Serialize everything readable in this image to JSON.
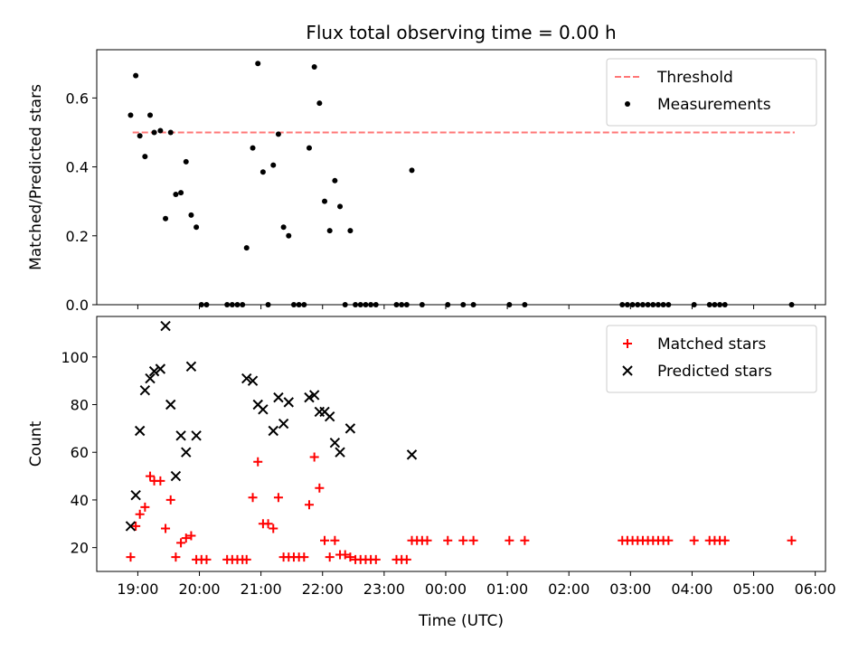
{
  "chart_data": [
    {
      "type": "scatter",
      "title": "Flux total observing time = 0.00 h",
      "xlabel": "",
      "ylabel": "Matched/Predicted stars",
      "xlim": [
        "18:20",
        "06:10"
      ],
      "ylim": [
        0,
        0.74
      ],
      "yticks": [
        "0.0",
        "0.2",
        "0.4",
        "0.6"
      ],
      "legend_position": "top-right",
      "threshold": {
        "name": "Threshold",
        "value": 0.5,
        "x_range": [
          "18:55",
          "05:40"
        ],
        "style": "dashed",
        "color": "#ff7777"
      },
      "series": [
        {
          "name": "Measurements",
          "marker": "dot",
          "color": "#000000",
          "points": [
            [
              "18:53",
              0.55
            ],
            [
              "18:58",
              0.665
            ],
            [
              "19:02",
              0.49
            ],
            [
              "19:07",
              0.43
            ],
            [
              "19:12",
              0.55
            ],
            [
              "19:16",
              0.5
            ],
            [
              "19:22",
              0.505
            ],
            [
              "19:27",
              0.25
            ],
            [
              "19:32",
              0.5
            ],
            [
              "19:37",
              0.32
            ],
            [
              "19:42",
              0.325
            ],
            [
              "19:47",
              0.415
            ],
            [
              "19:52",
              0.26
            ],
            [
              "19:57",
              0.225
            ],
            [
              "20:02",
              0.0
            ],
            [
              "20:07",
              0.0
            ],
            [
              "20:27",
              0.0
            ],
            [
              "20:32",
              0.0
            ],
            [
              "20:37",
              0.0
            ],
            [
              "20:42",
              0.0
            ],
            [
              "20:46",
              0.165
            ],
            [
              "20:52",
              0.455
            ],
            [
              "20:57",
              0.7
            ],
            [
              "21:02",
              0.385
            ],
            [
              "21:07",
              0.0
            ],
            [
              "21:12",
              0.405
            ],
            [
              "21:17",
              0.495
            ],
            [
              "21:22",
              0.225
            ],
            [
              "21:27",
              0.2
            ],
            [
              "21:32",
              0.0
            ],
            [
              "21:37",
              0.0
            ],
            [
              "21:42",
              0.0
            ],
            [
              "21:47",
              0.455
            ],
            [
              "21:52",
              0.69
            ],
            [
              "21:57",
              0.585
            ],
            [
              "22:02",
              0.3
            ],
            [
              "22:07",
              0.215
            ],
            [
              "22:12",
              0.36
            ],
            [
              "22:17",
              0.285
            ],
            [
              "22:22",
              0.0
            ],
            [
              "22:27",
              0.215
            ],
            [
              "22:32",
              0.0
            ],
            [
              "22:37",
              0.0
            ],
            [
              "22:42",
              0.0
            ],
            [
              "22:47",
              0.0
            ],
            [
              "22:52",
              0.0
            ],
            [
              "23:12",
              0.0
            ],
            [
              "23:17",
              0.0
            ],
            [
              "23:22",
              0.0
            ],
            [
              "23:27",
              0.39
            ],
            [
              "23:37",
              0.0
            ],
            [
              "00:02",
              0.0
            ],
            [
              "00:17",
              0.0
            ],
            [
              "00:27",
              0.0
            ],
            [
              "01:02",
              0.0
            ],
            [
              "01:17",
              0.0
            ],
            [
              "02:52",
              0.0
            ],
            [
              "02:57",
              0.0
            ],
            [
              "03:02",
              0.0
            ],
            [
              "03:07",
              0.0
            ],
            [
              "03:12",
              0.0
            ],
            [
              "03:17",
              0.0
            ],
            [
              "03:22",
              0.0
            ],
            [
              "03:27",
              0.0
            ],
            [
              "03:32",
              0.0
            ],
            [
              "03:37",
              0.0
            ],
            [
              "04:02",
              0.0
            ],
            [
              "04:17",
              0.0
            ],
            [
              "04:22",
              0.0
            ],
            [
              "04:27",
              0.0
            ],
            [
              "04:32",
              0.0
            ],
            [
              "05:37",
              0.0
            ]
          ]
        }
      ]
    },
    {
      "type": "scatter",
      "title": "",
      "xlabel": "Time (UTC)",
      "ylabel": "Count",
      "xlim": [
        "18:20",
        "06:10"
      ],
      "ylim": [
        10,
        117
      ],
      "yticks": [
        "20",
        "40",
        "60",
        "80",
        "100"
      ],
      "xticks": [
        "19:00",
        "20:00",
        "21:00",
        "22:00",
        "23:00",
        "00:00",
        "01:00",
        "02:00",
        "03:00",
        "04:00",
        "05:00",
        "06:00"
      ],
      "legend_position": "top-right",
      "series": [
        {
          "name": "Matched stars",
          "marker": "plus",
          "color": "#ff0000",
          "points": [
            [
              "18:53",
              16
            ],
            [
              "18:58",
              29
            ],
            [
              "19:02",
              34
            ],
            [
              "19:07",
              37
            ],
            [
              "19:12",
              50
            ],
            [
              "19:16",
              48
            ],
            [
              "19:22",
              48
            ],
            [
              "19:27",
              28
            ],
            [
              "19:32",
              40
            ],
            [
              "19:37",
              16
            ],
            [
              "19:42",
              22
            ],
            [
              "19:47",
              24
            ],
            [
              "19:52",
              25
            ],
            [
              "19:57",
              15
            ],
            [
              "20:02",
              15
            ],
            [
              "20:07",
              15
            ],
            [
              "20:27",
              15
            ],
            [
              "20:32",
              15
            ],
            [
              "20:37",
              15
            ],
            [
              "20:42",
              15
            ],
            [
              "20:46",
              15
            ],
            [
              "20:52",
              41
            ],
            [
              "20:57",
              56
            ],
            [
              "21:02",
              30
            ],
            [
              "21:07",
              30
            ],
            [
              "21:12",
              28
            ],
            [
              "21:17",
              41
            ],
            [
              "21:22",
              16
            ],
            [
              "21:27",
              16
            ],
            [
              "21:32",
              16
            ],
            [
              "21:37",
              16
            ],
            [
              "21:42",
              16
            ],
            [
              "21:47",
              38
            ],
            [
              "21:52",
              58
            ],
            [
              "21:57",
              45
            ],
            [
              "22:02",
              23
            ],
            [
              "22:07",
              16
            ],
            [
              "22:12",
              23
            ],
            [
              "22:17",
              17
            ],
            [
              "22:22",
              17
            ],
            [
              "22:27",
              16
            ],
            [
              "22:32",
              15
            ],
            [
              "22:37",
              15
            ],
            [
              "22:42",
              15
            ],
            [
              "22:47",
              15
            ],
            [
              "22:52",
              15
            ],
            [
              "23:12",
              15
            ],
            [
              "23:17",
              15
            ],
            [
              "23:22",
              15
            ],
            [
              "23:27",
              23
            ],
            [
              "23:32",
              23
            ],
            [
              "23:37",
              23
            ],
            [
              "23:42",
              23
            ],
            [
              "00:02",
              23
            ],
            [
              "00:17",
              23
            ],
            [
              "00:27",
              23
            ],
            [
              "01:02",
              23
            ],
            [
              "01:17",
              23
            ],
            [
              "02:52",
              23
            ],
            [
              "02:57",
              23
            ],
            [
              "03:02",
              23
            ],
            [
              "03:07",
              23
            ],
            [
              "03:12",
              23
            ],
            [
              "03:17",
              23
            ],
            [
              "03:22",
              23
            ],
            [
              "03:27",
              23
            ],
            [
              "03:32",
              23
            ],
            [
              "03:37",
              23
            ],
            [
              "04:02",
              23
            ],
            [
              "04:17",
              23
            ],
            [
              "04:22",
              23
            ],
            [
              "04:27",
              23
            ],
            [
              "04:32",
              23
            ],
            [
              "05:37",
              23
            ]
          ]
        },
        {
          "name": "Predicted stars",
          "marker": "x",
          "color": "#000000",
          "points": [
            [
              "18:53",
              29
            ],
            [
              "18:58",
              42
            ],
            [
              "19:02",
              69
            ],
            [
              "19:07",
              86
            ],
            [
              "19:12",
              91
            ],
            [
              "19:16",
              94
            ],
            [
              "19:22",
              95
            ],
            [
              "19:27",
              113
            ],
            [
              "19:32",
              80
            ],
            [
              "19:37",
              50
            ],
            [
              "19:42",
              67
            ],
            [
              "19:47",
              60
            ],
            [
              "19:52",
              96
            ],
            [
              "19:57",
              67
            ],
            [
              "20:46",
              91
            ],
            [
              "20:52",
              90
            ],
            [
              "20:57",
              80
            ],
            [
              "21:02",
              78
            ],
            [
              "21:12",
              69
            ],
            [
              "21:17",
              83
            ],
            [
              "21:22",
              72
            ],
            [
              "21:27",
              81
            ],
            [
              "21:47",
              83
            ],
            [
              "21:52",
              84
            ],
            [
              "21:57",
              77
            ],
            [
              "22:02",
              77
            ],
            [
              "22:07",
              75
            ],
            [
              "22:12",
              64
            ],
            [
              "22:17",
              60
            ],
            [
              "22:27",
              70
            ],
            [
              "23:27",
              59
            ]
          ]
        }
      ]
    }
  ]
}
